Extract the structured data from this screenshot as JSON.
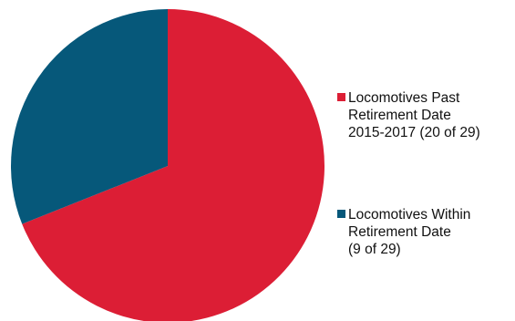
{
  "chart_data": {
    "type": "pie",
    "slices": [
      {
        "label": "Locomotives Past\nRetirement Date\n2015-2017 (20 of 29)",
        "value": 20,
        "color": "#dc1e35"
      },
      {
        "label": "Locomotives Within\nRetirement Date\n(9 of 29)",
        "value": 9,
        "color": "#06587a"
      }
    ],
    "total": 29,
    "start_angle_deg": 0,
    "direction": "clockwise",
    "legend_position": "right"
  }
}
